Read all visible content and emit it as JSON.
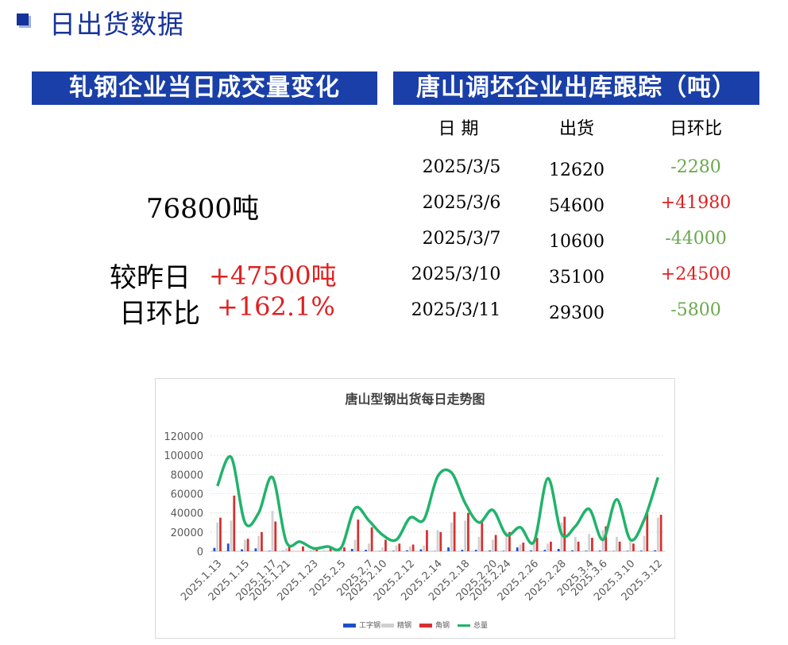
{
  "header": {
    "title": "日出货数据"
  },
  "left_panel": {
    "banner": "轧钢企业当日成交量变化",
    "volume": "76800吨",
    "vs_yesterday_label": "较昨日",
    "vs_yesterday_value": "+47500吨",
    "dod_label": "日环比",
    "dod_value": "+162.1%"
  },
  "right_panel": {
    "banner": "唐山调坯企业出库跟踪（吨）",
    "columns": [
      "日 期",
      "出货",
      "日环比"
    ],
    "rows": [
      {
        "date": "2025/3/5",
        "shipment": "12620",
        "change": "-2280",
        "direction": "down"
      },
      {
        "date": "2025/3/6",
        "shipment": "54600",
        "change": "+41980",
        "direction": "up"
      },
      {
        "date": "2025/3/7",
        "shipment": "10600",
        "change": "-44000",
        "direction": "down"
      },
      {
        "date": "2025/3/10",
        "shipment": "35100",
        "change": "+24500",
        "direction": "up"
      },
      {
        "date": "2025/3/11",
        "shipment": "29300",
        "change": "-5800",
        "direction": "down"
      }
    ]
  },
  "colors": {
    "brand_blue": "#1a3fa8",
    "up_red": "#e02020",
    "down_green": "#6aa84f",
    "series_i_beam": "#1f4fc8",
    "series_fine": "#d0d0d0",
    "series_angle": "#d63030",
    "series_total": "#21b36b"
  },
  "chart_data": {
    "type": "bar+line",
    "title": "唐山型钢出货每日走势图",
    "ylim": [
      0,
      120000
    ],
    "yticks": [
      0,
      20000,
      40000,
      60000,
      80000,
      100000,
      120000
    ],
    "x_tick_labels": [
      "2025.1.13",
      "2025.1.15",
      "2025.1.17",
      "2025.1.21",
      "2025.1.23",
      "2025.2.5",
      "2025.2.7",
      "2025.2.10",
      "2025.2.12",
      "2025.2.14",
      "2025.2.18",
      "2025.2.20",
      "2025.2.24",
      "2025.2.26",
      "2025.2.28",
      "2025.3.4",
      "2025.3.6",
      "2025.3.10",
      "2025.3.12"
    ],
    "legend_position": "bottom",
    "grid": true,
    "series": [
      {
        "name": "工字钢",
        "kind": "bar",
        "color": "#1f4fc8",
        "values": [
          3500,
          8000,
          2000,
          3000,
          500,
          300,
          0,
          300,
          200,
          500,
          2500,
          1500,
          300,
          500,
          1000,
          2000,
          300,
          4000,
          1500,
          1500,
          800,
          500,
          4000,
          1000,
          1500,
          2500,
          1000,
          600,
          700,
          300,
          500,
          700,
          1000
        ]
      },
      {
        "name": "精钢",
        "kind": "bar",
        "color": "#d0d0d0",
        "values": [
          30000,
          32000,
          12000,
          16000,
          42000,
          3000,
          500,
          2000,
          1000,
          4000,
          12000,
          8000,
          4000,
          6000,
          5000,
          6000,
          22000,
          30000,
          32000,
          15000,
          12000,
          20000,
          7000,
          10000,
          8000,
          30000,
          15000,
          18000,
          22000,
          15000,
          12000,
          16000,
          35000
        ]
      },
      {
        "name": "角钢",
        "kind": "bar",
        "color": "#d63030",
        "values": [
          35000,
          58000,
          13000,
          20000,
          31000,
          5000,
          5000,
          4000,
          3000,
          4000,
          33000,
          25000,
          12000,
          8000,
          7000,
          22000,
          20000,
          41000,
          40000,
          31000,
          17000,
          20000,
          9000,
          14000,
          10000,
          36000,
          10000,
          14000,
          26000,
          10000,
          8000,
          40000,
          38000
        ]
      },
      {
        "name": "总量",
        "kind": "line",
        "color": "#21b36b",
        "values": [
          68000,
          98000,
          30000,
          40000,
          77000,
          10000,
          10000,
          3000,
          5000,
          4000,
          45000,
          32000,
          17000,
          12000,
          35000,
          33000,
          78000,
          82000,
          50000,
          30000,
          43000,
          17000,
          25000,
          10000,
          76000,
          18000,
          26000,
          44000,
          12000,
          54000,
          12000,
          33000,
          77000
        ]
      }
    ]
  }
}
